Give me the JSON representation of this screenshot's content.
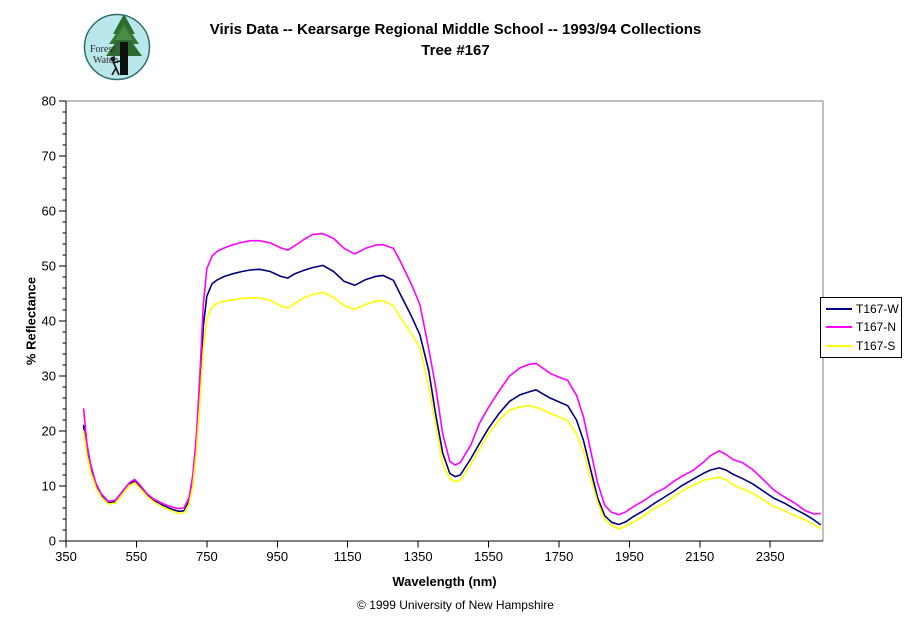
{
  "header": {
    "title_line1": "Viris Data -- Kearsarge Regional Middle School -- 1993/94 Collections",
    "title_line2": "Tree #167"
  },
  "logo": {
    "line1": "Forest",
    "line2": "Watch"
  },
  "footer": {
    "copyright": "© 1999 University of New Hampshire"
  },
  "chart_data": {
    "type": "line",
    "title": "Viris Data -- Kearsarge Regional Middle School -- 1993/94 Collections",
    "subtitle": "Tree #167",
    "xlabel": "Wavelength (nm)",
    "ylabel": "% Reflectance",
    "xlim": [
      350,
      2500
    ],
    "ylim": [
      0,
      80
    ],
    "x_major_ticks": [
      350,
      550,
      750,
      950,
      1150,
      1350,
      1550,
      1750,
      1950,
      2150,
      2350
    ],
    "y_major_tick_step": 10,
    "y_minor_tick_step": 2,
    "grid": false,
    "legend_position": "right",
    "plot_border_color": "#808080",
    "axis_color": "#000000",
    "x": [
      400,
      410,
      420,
      435,
      450,
      470,
      490,
      510,
      530,
      545,
      560,
      580,
      600,
      625,
      650,
      670,
      685,
      700,
      710,
      720,
      730,
      740,
      750,
      765,
      780,
      800,
      825,
      850,
      875,
      900,
      930,
      960,
      980,
      1000,
      1025,
      1050,
      1080,
      1110,
      1140,
      1170,
      1200,
      1230,
      1250,
      1280,
      1300,
      1330,
      1355,
      1380,
      1400,
      1420,
      1440,
      1455,
      1470,
      1500,
      1525,
      1550,
      1580,
      1610,
      1640,
      1665,
      1685,
      1705,
      1725,
      1750,
      1775,
      1800,
      1820,
      1840,
      1860,
      1880,
      1900,
      1920,
      1940,
      1960,
      1990,
      2020,
      2050,
      2075,
      2100,
      2130,
      2160,
      2180,
      2205,
      2225,
      2245,
      2270,
      2300,
      2330,
      2360,
      2390,
      2420,
      2450,
      2475,
      2492
    ],
    "series": [
      {
        "name": "T167-W",
        "color": "#000080",
        "values": [
          21,
          16,
          13,
          10,
          8.3,
          6.9,
          7.1,
          8.7,
          10.3,
          10.9,
          9.9,
          8.3,
          7.3,
          6.5,
          5.8,
          5.4,
          5.5,
          7.2,
          11,
          17.5,
          27,
          39,
          44.5,
          46.8,
          47.5,
          48.1,
          48.6,
          49,
          49.3,
          49.4,
          49,
          48.1,
          47.8,
          48.6,
          49.2,
          49.7,
          50.1,
          49,
          47.2,
          46.5,
          47.5,
          48.1,
          48.3,
          47.4,
          44.8,
          41,
          37.5,
          31,
          23,
          16,
          12.3,
          11.7,
          12,
          15,
          17.8,
          20.5,
          23.2,
          25.4,
          26.6,
          27.1,
          27.5,
          26.7,
          26,
          25.3,
          24.6,
          22,
          18.2,
          13,
          7.8,
          4.6,
          3.4,
          3,
          3.5,
          4.4,
          5.5,
          6.8,
          8,
          9,
          10.1,
          11.2,
          12.3,
          12.9,
          13.3,
          12.9,
          12.1,
          11.4,
          10.4,
          9.1,
          7.8,
          6.9,
          5.8,
          4.8,
          3.8,
          3
        ]
      },
      {
        "name": "T167-N",
        "color": "#FF00FF",
        "values": [
          24,
          17.5,
          14,
          10.5,
          8.6,
          7.2,
          7.4,
          9,
          10.6,
          11.2,
          10.2,
          8.6,
          7.6,
          6.8,
          6.2,
          5.9,
          6,
          8,
          12,
          19,
          30,
          43,
          49.5,
          51.8,
          52.7,
          53.3,
          53.9,
          54.3,
          54.6,
          54.6,
          54.2,
          53.3,
          52.9,
          53.7,
          54.8,
          55.7,
          55.9,
          55,
          53.2,
          52.2,
          53.2,
          53.8,
          53.9,
          53.2,
          50.8,
          46.8,
          43,
          35,
          28,
          19.5,
          14.5,
          13.8,
          14.3,
          17.5,
          21.5,
          24.3,
          27.3,
          30,
          31.5,
          32.1,
          32.3,
          31.4,
          30.5,
          29.8,
          29.2,
          26.5,
          22.5,
          16.5,
          10.5,
          6.5,
          5.2,
          4.8,
          5.3,
          6.2,
          7.3,
          8.6,
          9.6,
          10.8,
          11.8,
          12.8,
          14.3,
          15.5,
          16.4,
          15.7,
          14.8,
          14.3,
          13,
          11.2,
          9.3,
          8,
          6.9,
          5.5,
          4.9,
          5
        ]
      },
      {
        "name": "T167-S",
        "color": "#FFFF00",
        "values": [
          20,
          15.5,
          12.6,
          9.7,
          8,
          6.7,
          6.9,
          8.5,
          10.1,
          10.6,
          9.6,
          8.1,
          7.1,
          6.2,
          5.5,
          5,
          5.1,
          6.8,
          10,
          16,
          25,
          35,
          40.5,
          42.5,
          43.2,
          43.6,
          43.9,
          44.1,
          44.2,
          44.2,
          43.8,
          42.7,
          42.4,
          43.2,
          44.2,
          44.8,
          45.2,
          44.3,
          42.8,
          42.1,
          43,
          43.6,
          43.7,
          42.8,
          40.6,
          37.8,
          35.2,
          28.2,
          21,
          14,
          11.3,
          10.8,
          11,
          14,
          16.8,
          19.5,
          22,
          23.8,
          24.4,
          24.6,
          24.3,
          23.8,
          23.2,
          22.6,
          21.8,
          19.5,
          16.2,
          11.5,
          7,
          3.9,
          2.8,
          2.2,
          2.7,
          3.4,
          4.5,
          5.9,
          6.9,
          8,
          9.1,
          10.1,
          11,
          11.3,
          11.6,
          11.1,
          10.2,
          9.5,
          8.7,
          7.5,
          6.3,
          5.5,
          4.6,
          3.8,
          2.9,
          2.3
        ]
      }
    ]
  }
}
